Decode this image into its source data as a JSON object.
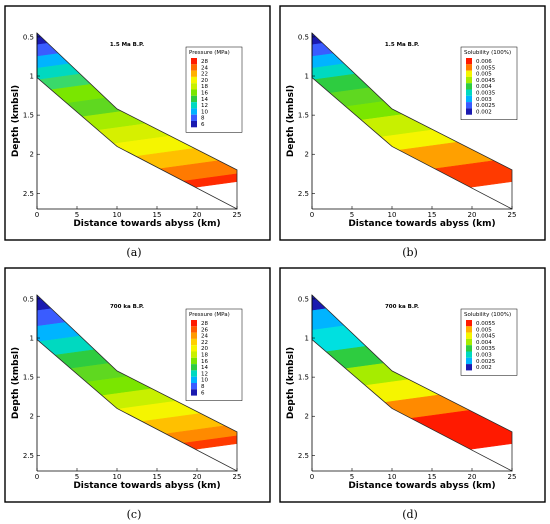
{
  "chart_data": [
    {
      "type": "heatmap",
      "panel_label": "(a)",
      "title": "1.5 Ma B.P.",
      "xlabel": "Distance towards abyss (km)",
      "ylabel": "Depth (kmbsl)",
      "xlim": [
        0,
        25
      ],
      "ylim": [
        0.45,
        2.7
      ],
      "y_inverted": true,
      "xticks": [
        "0",
        "5",
        "10",
        "15",
        "20",
        "25"
      ],
      "yticks": [
        "0.5",
        "1",
        "1.5",
        "2",
        "2.5"
      ],
      "legend_title": "Pressure (MPa)",
      "legend_position": "top-right",
      "legend_levels": [
        "28",
        "24",
        "22",
        "20",
        "18",
        "16",
        "14",
        "12",
        "10",
        "8",
        "6"
      ],
      "legend_colors": [
        "#ff1a00",
        "#ff6a00",
        "#ffb000",
        "#f5f500",
        "#c8f000",
        "#7ae600",
        "#2ecc40",
        "#00d9c0",
        "#00b4ff",
        "#3a5cff",
        "#1a1ab0"
      ],
      "bands": [
        {
          "y0": 0.45,
          "y1": 0.6,
          "color": "#1a1ab0"
        },
        {
          "y0": 0.6,
          "y1": 0.75,
          "color": "#3a5cff"
        },
        {
          "y0": 0.75,
          "y1": 0.9,
          "color": "#00b4ff"
        },
        {
          "y0": 0.9,
          "y1": 1.05,
          "color": "#00d9c0"
        },
        {
          "y0": 1.05,
          "y1": 1.2,
          "color": "#3ad96a"
        },
        {
          "y0": 1.2,
          "y1": 1.4,
          "color": "#7ae600"
        },
        {
          "y0": 1.4,
          "y1": 1.6,
          "color": "#5fd820"
        },
        {
          "y0": 1.6,
          "y1": 1.8,
          "color": "#a6ec00"
        },
        {
          "y0": 1.8,
          "y1": 2.0,
          "color": "#d6f000"
        },
        {
          "y0": 2.0,
          "y1": 2.2,
          "color": "#f5f500"
        },
        {
          "y0": 2.2,
          "y1": 2.4,
          "color": "#ffc000"
        },
        {
          "y0": 2.4,
          "y1": 2.6,
          "color": "#ff7a00"
        },
        {
          "y0": 2.6,
          "y1": 2.7,
          "color": "#ff2a00"
        }
      ]
    },
    {
      "type": "heatmap",
      "panel_label": "(b)",
      "title": "1.5 Ma B.P.",
      "xlabel": "Distance towards abyss (km)",
      "ylabel": "Depth (kmbsl)",
      "xlim": [
        0,
        25
      ],
      "ylim": [
        0.45,
        2.7
      ],
      "y_inverted": true,
      "xticks": [
        "0",
        "5",
        "10",
        "15",
        "20",
        "25"
      ],
      "yticks": [
        "0.5",
        "1",
        "1.5",
        "2",
        "2.5"
      ],
      "legend_title": "Solubility (100%)",
      "legend_position": "top-right",
      "legend_levels": [
        "0.006",
        "0.0055",
        "0.005",
        "0.0045",
        "0.004",
        "0.0035",
        "0.003",
        "0.0025",
        "0.002"
      ],
      "legend_colors": [
        "#ff1a00",
        "#ff7a00",
        "#f5f500",
        "#a6ec00",
        "#2ecc40",
        "#00d9c0",
        "#00b4ff",
        "#3a5cff",
        "#1a1ab0"
      ],
      "bands": [
        {
          "y0": 0.45,
          "y1": 0.6,
          "color": "#1a1ab0"
        },
        {
          "y0": 0.6,
          "y1": 0.75,
          "color": "#3a5cff"
        },
        {
          "y0": 0.75,
          "y1": 0.9,
          "color": "#00b4ff"
        },
        {
          "y0": 0.9,
          "y1": 1.05,
          "color": "#00d9c0"
        },
        {
          "y0": 1.05,
          "y1": 1.25,
          "color": "#2ecc40"
        },
        {
          "y0": 1.25,
          "y1": 1.45,
          "color": "#5fd820"
        },
        {
          "y0": 1.45,
          "y1": 1.65,
          "color": "#7ae600"
        },
        {
          "y0": 1.65,
          "y1": 1.9,
          "color": "#c8f000"
        },
        {
          "y0": 1.9,
          "y1": 2.1,
          "color": "#f5f500"
        },
        {
          "y0": 2.1,
          "y1": 2.4,
          "color": "#ffa000"
        },
        {
          "y0": 2.4,
          "y1": 2.7,
          "color": "#ff3a00"
        }
      ]
    },
    {
      "type": "heatmap",
      "panel_label": "(c)",
      "title": "700 ka B.P.",
      "xlabel": "Distance towards abyss (km)",
      "ylabel": "Depth (kmbsl)",
      "xlim": [
        0,
        25
      ],
      "ylim": [
        0.45,
        2.7
      ],
      "y_inverted": true,
      "xticks": [
        "0",
        "5",
        "10",
        "15",
        "20",
        "25"
      ],
      "yticks": [
        "0.5",
        "1",
        "1.5",
        "2",
        "2.5"
      ],
      "legend_title": "Pressure (MPa)",
      "legend_position": "top-right",
      "legend_levels": [
        "28",
        "26",
        "24",
        "22",
        "20",
        "18",
        "16",
        "14",
        "12",
        "10",
        "8",
        "6"
      ],
      "legend_colors": [
        "#ff1a00",
        "#ff5a00",
        "#ff9a00",
        "#ffd000",
        "#f5f500",
        "#c8f000",
        "#7ae600",
        "#2ecc40",
        "#00d9c0",
        "#00b4ff",
        "#3a5cff",
        "#1a1ab0"
      ],
      "bands": [
        {
          "y0": 0.45,
          "y1": 0.65,
          "color": "#1a1ab0"
        },
        {
          "y0": 0.65,
          "y1": 0.85,
          "color": "#3a5cff"
        },
        {
          "y0": 0.85,
          "y1": 1.05,
          "color": "#00b4ff"
        },
        {
          "y0": 1.05,
          "y1": 1.25,
          "color": "#00d9c0"
        },
        {
          "y0": 1.25,
          "y1": 1.45,
          "color": "#2ecc40"
        },
        {
          "y0": 1.45,
          "y1": 1.65,
          "color": "#5fd820"
        },
        {
          "y0": 1.65,
          "y1": 1.85,
          "color": "#7ae600"
        },
        {
          "y0": 1.85,
          "y1": 2.05,
          "color": "#c8f000"
        },
        {
          "y0": 2.05,
          "y1": 2.25,
          "color": "#f5f500"
        },
        {
          "y0": 2.25,
          "y1": 2.45,
          "color": "#ffc000"
        },
        {
          "y0": 2.45,
          "y1": 2.6,
          "color": "#ff8a00"
        },
        {
          "y0": 2.6,
          "y1": 2.7,
          "color": "#ff3a00"
        }
      ]
    },
    {
      "type": "heatmap",
      "panel_label": "(d)",
      "title": "700 ka B.P.",
      "xlabel": "Distance towards abyss (km)",
      "ylabel": "Depth (kmbsl)",
      "xlim": [
        0,
        25
      ],
      "ylim": [
        0.45,
        2.7
      ],
      "y_inverted": true,
      "xticks": [
        "0",
        "5",
        "10",
        "15",
        "20",
        "25"
      ],
      "yticks": [
        "0.5",
        "1",
        "1.5",
        "2",
        "2.5"
      ],
      "legend_title": "Solubility (100%)",
      "legend_position": "top-right",
      "legend_levels": [
        "0.0055",
        "0.005",
        "0.0045",
        "0.004",
        "0.0035",
        "0.003",
        "0.0025",
        "0.002"
      ],
      "legend_colors": [
        "#ff1a00",
        "#ffb000",
        "#f5f500",
        "#a6ec00",
        "#2ecc40",
        "#00d9c0",
        "#00b4ff",
        "#1a1ab0"
      ],
      "bands": [
        {
          "y0": 0.45,
          "y1": 0.65,
          "color": "#1a1ab0"
        },
        {
          "y0": 0.65,
          "y1": 0.9,
          "color": "#00b4ff"
        },
        {
          "y0": 0.9,
          "y1": 1.2,
          "color": "#00e0e0"
        },
        {
          "y0": 1.2,
          "y1": 1.45,
          "color": "#2ecc40"
        },
        {
          "y0": 1.45,
          "y1": 1.7,
          "color": "#a6ec00"
        },
        {
          "y0": 1.7,
          "y1": 1.95,
          "color": "#f5f500"
        },
        {
          "y0": 1.95,
          "y1": 2.2,
          "color": "#ff8a00"
        },
        {
          "y0": 2.2,
          "y1": 2.7,
          "color": "#ff1a00"
        }
      ]
    }
  ]
}
